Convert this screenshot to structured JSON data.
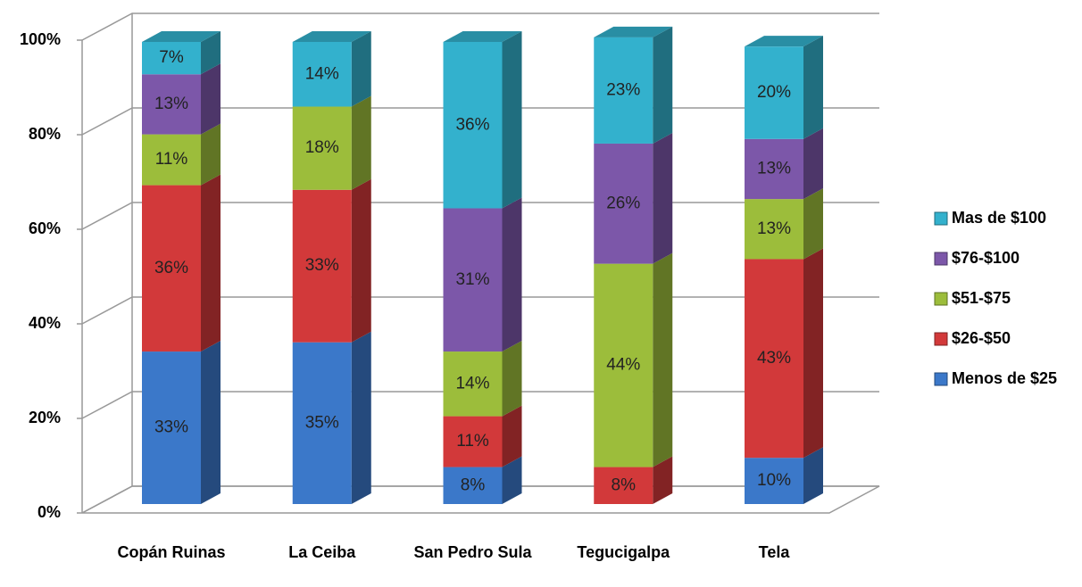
{
  "chart_data": {
    "type": "bar3d_stacked",
    "categories": [
      "Copán Ruinas",
      "La Ceiba",
      "San Pedro Sula",
      "Tegucigalpa",
      "Tela"
    ],
    "series": [
      {
        "name": "Menos de $25",
        "color": "#3b78c9",
        "values": [
          33,
          35,
          8,
          null,
          10
        ],
        "value_labels": [
          "33%",
          "35%",
          "8%",
          null,
          "10%"
        ]
      },
      {
        "name": "$26-$50",
        "color": "#d2393a",
        "values": [
          36,
          33,
          11,
          8,
          43
        ],
        "value_labels": [
          "36%",
          "33%",
          "11%",
          "8%",
          "43%"
        ]
      },
      {
        "name": "$51-$75",
        "color": "#9cbd3b",
        "values": [
          11,
          18,
          14,
          44,
          13
        ],
        "value_labels": [
          "11%",
          "18%",
          "14%",
          "44%",
          "13%"
        ]
      },
      {
        "name": "$76-$100",
        "color": "#7c57a9",
        "values": [
          13,
          null,
          31,
          26,
          13
        ],
        "value_labels": [
          "13%",
          null,
          "31%",
          "26%",
          "13%"
        ]
      },
      {
        "name": "Mas de $100",
        "color": "#33b1cd",
        "values": [
          7,
          14,
          36,
          23,
          20
        ],
        "value_labels": [
          "7%",
          "14%",
          "36%",
          "23%",
          "20%"
        ]
      }
    ],
    "ylim": [
      0,
      100
    ],
    "yticks": [
      {
        "value": 0,
        "label": "0%"
      },
      {
        "value": 20,
        "label": "20%"
      },
      {
        "value": 40,
        "label": "40%"
      },
      {
        "value": 60,
        "label": "60%"
      },
      {
        "value": 80,
        "label": "80%"
      },
      {
        "value": 100,
        "label": "100%"
      }
    ],
    "grid": true,
    "legend": "right"
  }
}
